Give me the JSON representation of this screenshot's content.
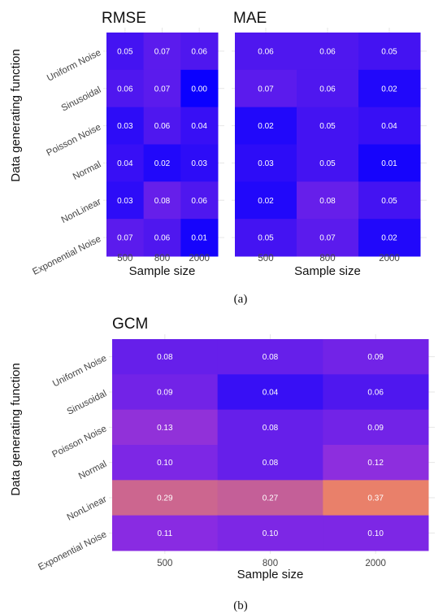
{
  "figure": {
    "caption_a": "(a)",
    "caption_b": "(b)",
    "ylabel": "Data generating function",
    "ylabel_b": "Data generating function"
  },
  "chart_data": [
    {
      "type": "heatmap",
      "title": "RMSE",
      "xlabel": "Sample size",
      "ylabel": "Data generating function",
      "x": [
        "500",
        "800",
        "2000"
      ],
      "y": [
        "Uniform Noise",
        "Sinusoidal",
        "Poisson Noise",
        "Normal",
        "NonLinear",
        "Exponential Noise"
      ],
      "values": [
        [
          0.05,
          0.07,
          0.06
        ],
        [
          0.06,
          0.07,
          0.0
        ],
        [
          0.03,
          0.06,
          0.04
        ],
        [
          0.04,
          0.02,
          0.03
        ],
        [
          0.03,
          0.08,
          0.06
        ],
        [
          0.07,
          0.06,
          0.01
        ]
      ],
      "labels": [
        [
          "0.05",
          "0.07",
          "0.06"
        ],
        [
          "0.06",
          "0.07",
          "0.00"
        ],
        [
          "0.03",
          "0.06",
          "0.04"
        ],
        [
          "0.04",
          "0.02",
          "0.03"
        ],
        [
          "0.03",
          "0.08",
          "0.06"
        ],
        [
          "0.07",
          "0.06",
          "0.01"
        ]
      ],
      "color_scale": {
        "min": 0,
        "max": 0.37,
        "low": "#0a00ff",
        "mid": "#8a2be2",
        "high": "#e9806a"
      }
    },
    {
      "type": "heatmap",
      "title": "MAE",
      "xlabel": "Sample size",
      "x": [
        "500",
        "800",
        "2000"
      ],
      "y": [
        "Uniform Noise",
        "Sinusoidal",
        "Poisson Noise",
        "Normal",
        "NonLinear",
        "Exponential Noise"
      ],
      "values": [
        [
          0.06,
          0.06,
          0.05
        ],
        [
          0.07,
          0.06,
          0.02
        ],
        [
          0.02,
          0.05,
          0.04
        ],
        [
          0.03,
          0.05,
          0.01
        ],
        [
          0.02,
          0.08,
          0.05
        ],
        [
          0.05,
          0.07,
          0.02
        ]
      ],
      "labels": [
        [
          "0.06",
          "0.06",
          "0.05"
        ],
        [
          "0.07",
          "0.06",
          "0.02"
        ],
        [
          "0.02",
          "0.05",
          "0.04"
        ],
        [
          "0.03",
          "0.05",
          "0.01"
        ],
        [
          "0.02",
          "0.08",
          "0.05"
        ],
        [
          "0.05",
          "0.07",
          "0.02"
        ]
      ],
      "color_scale": {
        "min": 0,
        "max": 0.37,
        "low": "#0a00ff",
        "mid": "#8a2be2",
        "high": "#e9806a"
      }
    },
    {
      "type": "heatmap",
      "title": "GCM",
      "xlabel": "Sample size",
      "ylabel": "Data generating function",
      "x": [
        "500",
        "800",
        "2000"
      ],
      "y": [
        "Uniform Noise",
        "Sinusoidal",
        "Poisson Noise",
        "Normal",
        "NonLinear",
        "Exponential Noise"
      ],
      "values": [
        [
          0.08,
          0.08,
          0.09
        ],
        [
          0.09,
          0.04,
          0.06
        ],
        [
          0.13,
          0.08,
          0.09
        ],
        [
          0.1,
          0.08,
          0.12
        ],
        [
          0.29,
          0.27,
          0.37
        ],
        [
          0.11,
          0.1,
          0.1
        ]
      ],
      "labels": [
        [
          "0.08",
          "0.08",
          "0.09"
        ],
        [
          "0.09",
          "0.04",
          "0.06"
        ],
        [
          "0.13",
          "0.08",
          "0.09"
        ],
        [
          "0.10",
          "0.08",
          "0.12"
        ],
        [
          "0.29",
          "0.27",
          "0.37"
        ],
        [
          "0.11",
          "0.10",
          "0.10"
        ]
      ],
      "color_scale": {
        "min": 0,
        "max": 0.37,
        "low": "#0a00ff",
        "mid": "#8a2be2",
        "high": "#e9806a"
      }
    }
  ]
}
